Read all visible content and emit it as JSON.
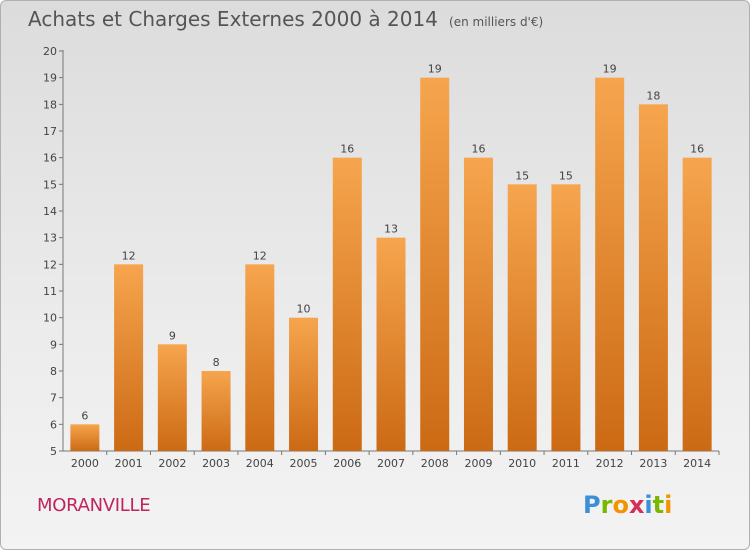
{
  "header": {
    "title": "Achats et Charges Externes 2000 à 2014",
    "unit": "(en milliers d'€)"
  },
  "footer": {
    "commune": "MORANVILLE",
    "logo_letters": [
      "P",
      "r",
      "o",
      "x",
      "i",
      "t",
      "i"
    ]
  },
  "colors": {
    "bar_light": "#f6a54e",
    "bar_dark": "#cc6a14",
    "commune_text": "#c0245f",
    "label_text": "#444444"
  },
  "chart_data": {
    "type": "bar",
    "title": "Achats et Charges Externes 2000 à 2014",
    "categories": [
      "2000",
      "2001",
      "2002",
      "2003",
      "2004",
      "2005",
      "2006",
      "2007",
      "2008",
      "2009",
      "2010",
      "2011",
      "2012",
      "2013",
      "2014"
    ],
    "values": [
      6,
      12,
      9,
      8,
      12,
      10,
      16,
      13,
      19,
      16,
      15,
      15,
      19,
      18,
      16
    ],
    "ylim": [
      5,
      20
    ],
    "yticks": [
      5,
      6,
      7,
      8,
      9,
      10,
      11,
      12,
      13,
      14,
      15,
      16,
      17,
      18,
      19,
      20
    ],
    "grid": false,
    "legend": "none"
  }
}
